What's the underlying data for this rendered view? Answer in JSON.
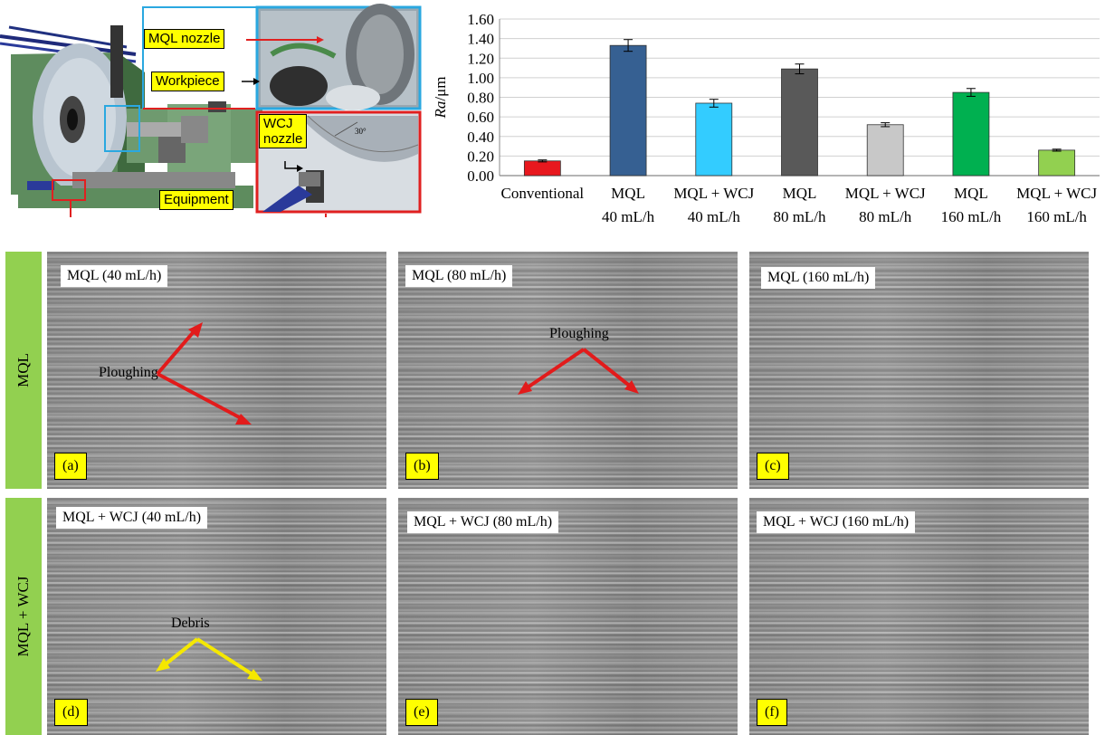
{
  "equipment_panel": {
    "callouts": {
      "mql_nozzle": "MQL nozzle",
      "workpiece": "Workpiece",
      "wcj_nozzle": "WCJ\nnozzle",
      "equipment": "Equipment"
    },
    "angle_label": "30°"
  },
  "chart_data": {
    "type": "bar",
    "ylabel_italic": "Ra",
    "ylabel_unit": "/μm",
    "ylim": [
      0,
      1.6
    ],
    "yticks": [
      "0.00",
      "0.20",
      "0.40",
      "0.60",
      "0.80",
      "1.00",
      "1.20",
      "1.40",
      "1.60"
    ],
    "categories": [
      [
        "Conventional",
        ""
      ],
      [
        "MQL",
        "40 mL/h"
      ],
      [
        "MQL + WCJ",
        "40 mL/h"
      ],
      [
        "MQL",
        "80 mL/h"
      ],
      [
        "MQL + WCJ",
        "80 mL/h"
      ],
      [
        "MQL",
        "160 mL/h"
      ],
      [
        "MQL + WCJ",
        "160 mL/h"
      ]
    ],
    "values": [
      0.15,
      1.33,
      0.74,
      1.09,
      0.52,
      0.85,
      0.26
    ],
    "errors": [
      0.01,
      0.06,
      0.04,
      0.05,
      0.02,
      0.04,
      0.01
    ],
    "colors": [
      "#e8181e",
      "#366092",
      "#33ccff",
      "#595959",
      "#c8c8c8",
      "#00b050",
      "#92d050"
    ],
    "grid": "horizontal"
  },
  "rows": [
    {
      "label": "MQL",
      "panels": [
        {
          "title": "MQL (40 mL/h)",
          "letter": "(a)",
          "annotation": "Ploughing"
        },
        {
          "title": "MQL (80 mL/h)",
          "letter": "(b)",
          "annotation": "Ploughing"
        },
        {
          "title": "MQL (160 mL/h)",
          "letter": "(c)",
          "annotation": ""
        }
      ]
    },
    {
      "label": "MQL + WCJ",
      "panels": [
        {
          "title": "MQL + WCJ (40 mL/h)",
          "letter": "(d)",
          "annotation": "Debris"
        },
        {
          "title": "MQL + WCJ (80 mL/h)",
          "letter": "(e)",
          "annotation": ""
        },
        {
          "title": "MQL + WCJ (160 mL/h)",
          "letter": "(f)",
          "annotation": ""
        }
      ]
    }
  ]
}
